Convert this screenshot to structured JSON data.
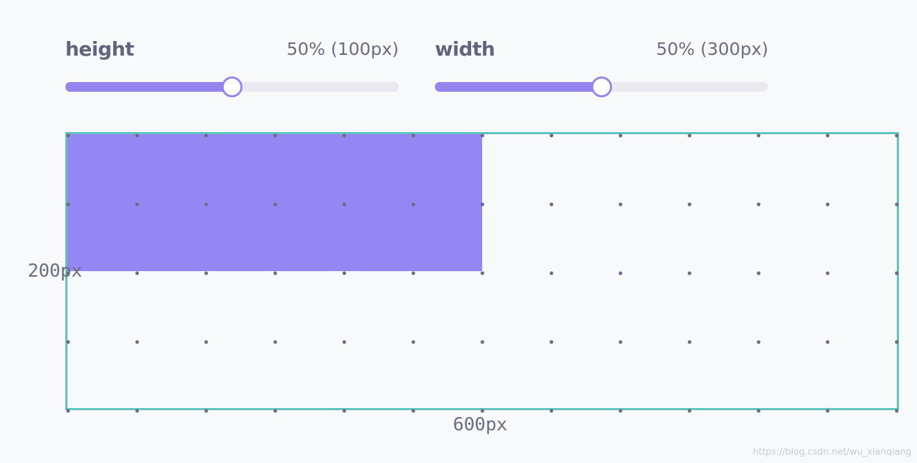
{
  "controls": {
    "height": {
      "label": "height",
      "value_text": "50% (100px)",
      "percent": 50
    },
    "width": {
      "label": "width",
      "value_text": "50% (300px)",
      "percent": 50
    }
  },
  "container": {
    "height_label": "200px",
    "width_label": "600px"
  },
  "watermark": "https://blog.csdn.net/wu_xianqiang",
  "colors": {
    "accent": "#9485ee",
    "box": "#9486f3",
    "track": "#e9e9ef",
    "frame_border": "#5cc4bd",
    "dots": "#6b6b84",
    "text": "#63637e"
  }
}
